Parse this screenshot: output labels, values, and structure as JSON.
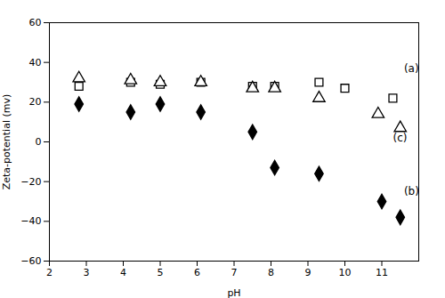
{
  "chart_data": {
    "type": "scatter",
    "xlabel": "pH",
    "ylabel": "Zeta-potential (mv)",
    "xlim": [
      2,
      12
    ],
    "ylim": [
      -60,
      60
    ],
    "xticks": [
      2,
      3,
      4,
      5,
      6,
      7,
      8,
      9,
      10,
      11
    ],
    "yticks": [
      -60,
      -40,
      -20,
      0,
      20,
      40,
      60
    ],
    "series": [
      {
        "marker": "square-open",
        "color": "black",
        "x": [
          2.8,
          4.2,
          5.0,
          6.1,
          7.5,
          8.1,
          9.3,
          10.0,
          11.3
        ],
        "values": [
          28,
          30,
          29,
          30,
          28,
          28,
          30,
          27,
          22
        ]
      },
      {
        "marker": "diamond",
        "color": "black",
        "x": [
          2.8,
          4.2,
          5.0,
          6.1,
          7.5,
          8.1,
          9.3,
          11.0,
          11.5
        ],
        "values": [
          19,
          15,
          19,
          15,
          5,
          -13,
          -16,
          -30,
          -38
        ]
      },
      {
        "marker": "triangle-open",
        "color": "black",
        "x": [
          2.8,
          4.2,
          5.0,
          6.1,
          7.5,
          8.1,
          9.3,
          10.9,
          11.5
        ],
        "values": [
          32,
          31,
          30,
          30,
          27,
          27,
          22,
          14,
          7
        ]
      }
    ],
    "annotations": [
      {
        "text": "(a)",
        "x": 11.6,
        "y": 37
      },
      {
        "text": "(b)",
        "x": 11.6,
        "y": -25
      },
      {
        "text": "(c)",
        "x": 11.3,
        "y": 2
      }
    ]
  }
}
